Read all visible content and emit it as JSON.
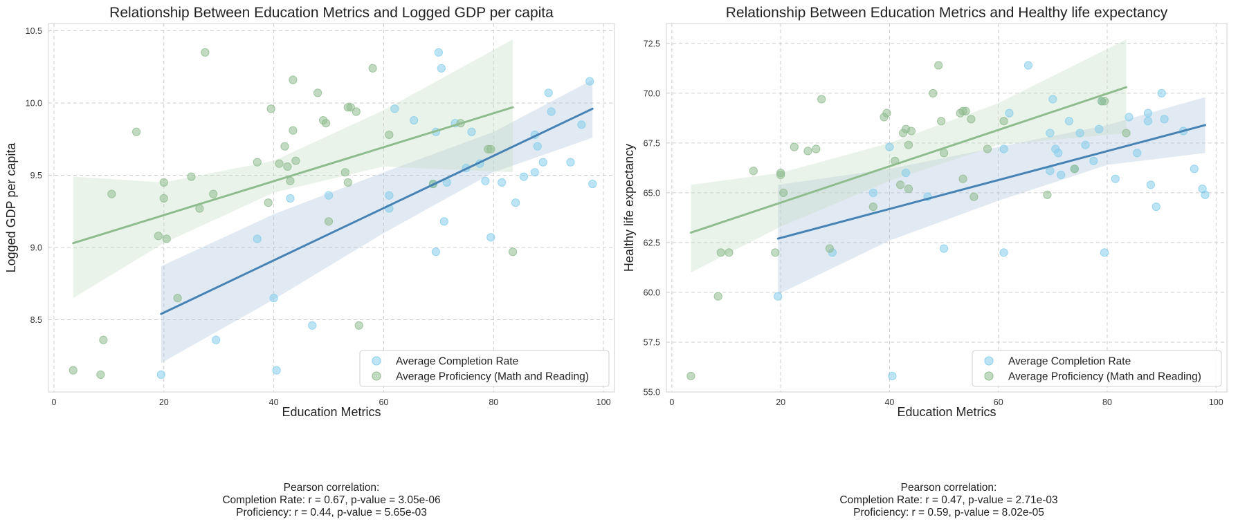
{
  "chart_data": [
    {
      "type": "scatter",
      "title": "Relationship Between Education Metrics and Logged GDP per capita",
      "xlabel": "Education Metrics",
      "ylabel": "Logged GDP per capita",
      "xlim": [
        -1,
        102
      ],
      "ylim": [
        8.0,
        10.55
      ],
      "xticks": [
        "0",
        "20",
        "40",
        "60",
        "80",
        "100"
      ],
      "yticks": [
        "8.5",
        "9.0",
        "9.5",
        "10.0",
        "10.5"
      ],
      "grid": true,
      "legend_position": "lower-right",
      "series": [
        {
          "name": "Average Completion Rate",
          "color": "#87ceeb",
          "points": [
            [
              19.5,
              8.12
            ],
            [
              29.5,
              8.36
            ],
            [
              37,
              9.06
            ],
            [
              40,
              8.65
            ],
            [
              40.5,
              8.15
            ],
            [
              43,
              9.34
            ],
            [
              47,
              8.46
            ],
            [
              50,
              9.36
            ],
            [
              61,
              9.36
            ],
            [
              61,
              9.27
            ],
            [
              62,
              9.96
            ],
            [
              65.5,
              9.88
            ],
            [
              69,
              9.44
            ],
            [
              69.5,
              8.97
            ],
            [
              69.5,
              9.8
            ],
            [
              70,
              10.35
            ],
            [
              70.5,
              10.24
            ],
            [
              71,
              9.18
            ],
            [
              71.5,
              9.45
            ],
            [
              73,
              9.86
            ],
            [
              75,
              9.55
            ],
            [
              76,
              9.8
            ],
            [
              77.5,
              9.58
            ],
            [
              78.5,
              9.46
            ],
            [
              79.5,
              9.07
            ],
            [
              81.5,
              9.45
            ],
            [
              84,
              9.31
            ],
            [
              85.5,
              9.49
            ],
            [
              87.5,
              9.52
            ],
            [
              87.5,
              9.78
            ],
            [
              88,
              9.7
            ],
            [
              89,
              9.59
            ],
            [
              90,
              10.07
            ],
            [
              90.5,
              9.94
            ],
            [
              94,
              9.59
            ],
            [
              96,
              9.85
            ],
            [
              97.5,
              10.15
            ],
            [
              98,
              9.44
            ]
          ],
          "fit": {
            "x": [
              19.5,
              98
            ],
            "y": [
              8.54,
              9.96
            ]
          },
          "ci_upper": [
            [
              19.5,
              8.87
            ],
            [
              40,
              9.23
            ],
            [
              60,
              9.52
            ],
            [
              80,
              9.8
            ],
            [
              98,
              10.16
            ]
          ],
          "ci_lower": [
            [
              19.5,
              8.2
            ],
            [
              40,
              8.64
            ],
            [
              60,
              9.1
            ],
            [
              80,
              9.52
            ],
            [
              98,
              9.76
            ]
          ]
        },
        {
          "name": "Average Proficiency (Math and Reading)",
          "color": "#8fbc8f",
          "points": [
            [
              3.5,
              8.15
            ],
            [
              8.5,
              8.12
            ],
            [
              9,
              8.36
            ],
            [
              10.5,
              9.37
            ],
            [
              15,
              9.8
            ],
            [
              19,
              9.08
            ],
            [
              20,
              9.45
            ],
            [
              20,
              9.34
            ],
            [
              20.5,
              9.06
            ],
            [
              22.5,
              8.65
            ],
            [
              25,
              9.49
            ],
            [
              26.5,
              9.27
            ],
            [
              27.5,
              10.35
            ],
            [
              29,
              9.37
            ],
            [
              37,
              9.59
            ],
            [
              39,
              9.31
            ],
            [
              39.5,
              9.96
            ],
            [
              41,
              9.58
            ],
            [
              42,
              9.7
            ],
            [
              42.5,
              9.56
            ],
            [
              43,
              9.46
            ],
            [
              43.5,
              10.16
            ],
            [
              43.5,
              9.81
            ],
            [
              44,
              9.6
            ],
            [
              48,
              10.07
            ],
            [
              49,
              9.88
            ],
            [
              49.5,
              9.86
            ],
            [
              50,
              9.18
            ],
            [
              53,
              9.52
            ],
            [
              53.5,
              9.45
            ],
            [
              53.5,
              9.97
            ],
            [
              54,
              9.97
            ],
            [
              55,
              9.94
            ],
            [
              55.5,
              8.46
            ],
            [
              58,
              10.24
            ],
            [
              61,
              9.78
            ],
            [
              69,
              9.44
            ],
            [
              74,
              9.86
            ],
            [
              79,
              9.68
            ],
            [
              79.5,
              9.68
            ],
            [
              83.5,
              8.97
            ]
          ],
          "fit": {
            "x": [
              3.5,
              83.5
            ],
            "y": [
              9.03,
              9.97
            ]
          },
          "ci_upper": [
            [
              3.5,
              9.49
            ],
            [
              20,
              9.45
            ],
            [
              40,
              9.6
            ],
            [
              60,
              9.95
            ],
            [
              83.5,
              10.44
            ]
          ],
          "ci_lower": [
            [
              3.5,
              8.65
            ],
            [
              20,
              9.03
            ],
            [
              40,
              9.38
            ],
            [
              60,
              9.56
            ],
            [
              83.5,
              9.52
            ]
          ]
        }
      ],
      "annotation_title": "Pearson correlation:",
      "annotations": [
        "Completion Rate: r = 0.67, p-value = 3.05e-06",
        "Proficiency: r = 0.44, p-value = 5.65e-03"
      ]
    },
    {
      "type": "scatter",
      "title": "Relationship Between Education Metrics and Healthy life expectancy",
      "xlabel": "Education Metrics",
      "ylabel": "Healthy life expectancy",
      "xlim": [
        -1,
        102
      ],
      "ylim": [
        55,
        73.5
      ],
      "xticks": [
        "0",
        "20",
        "40",
        "60",
        "80",
        "100"
      ],
      "yticks": [
        "55.0",
        "57.5",
        "60.0",
        "62.5",
        "65.0",
        "67.5",
        "70.0",
        "72.5"
      ],
      "grid": true,
      "legend_position": "lower-right",
      "series": [
        {
          "name": "Average Completion Rate",
          "color": "#87ceeb",
          "points": [
            [
              19.5,
              59.8
            ],
            [
              29.5,
              62
            ],
            [
              37,
              65
            ],
            [
              40,
              67.3
            ],
            [
              40.5,
              55.8
            ],
            [
              43,
              66
            ],
            [
              47,
              64.8
            ],
            [
              50,
              62.2
            ],
            [
              61,
              62
            ],
            [
              61,
              67.2
            ],
            [
              62,
              69
            ],
            [
              65.5,
              71.4
            ],
            [
              69.5,
              68
            ],
            [
              69.5,
              66.1
            ],
            [
              70,
              69.7
            ],
            [
              70.5,
              67.2
            ],
            [
              71,
              67
            ],
            [
              71.5,
              65.9
            ],
            [
              73,
              68.6
            ],
            [
              74,
              66.2
            ],
            [
              75,
              68
            ],
            [
              76,
              67.4
            ],
            [
              77.5,
              66.6
            ],
            [
              78.5,
              68.2
            ],
            [
              79,
              69.6
            ],
            [
              79.5,
              62
            ],
            [
              81.5,
              65.7
            ],
            [
              84,
              68.8
            ],
            [
              85.5,
              67
            ],
            [
              87.5,
              69
            ],
            [
              87.5,
              68.6
            ],
            [
              88,
              65.4
            ],
            [
              89,
              64.3
            ],
            [
              90,
              70
            ],
            [
              90.5,
              68.7
            ],
            [
              94,
              68.1
            ],
            [
              96,
              66.2
            ],
            [
              97.5,
              65.2
            ],
            [
              98,
              64.9
            ]
          ],
          "fit": {
            "x": [
              19.5,
              98
            ],
            "y": [
              62.7,
              68.4
            ]
          },
          "ci_upper": [
            [
              19.5,
              65.4
            ],
            [
              40,
              66.2
            ],
            [
              60,
              67.3
            ],
            [
              80,
              68.4
            ],
            [
              98,
              69.8
            ]
          ],
          "ci_lower": [
            [
              19.5,
              59.9
            ],
            [
              40,
              62.6
            ],
            [
              60,
              64.6
            ],
            [
              80,
              66.4
            ],
            [
              98,
              67
            ]
          ]
        },
        {
          "name": "Average Proficiency (Math and Reading)",
          "color": "#8fbc8f",
          "points": [
            [
              3.5,
              55.8
            ],
            [
              8.5,
              59.8
            ],
            [
              9,
              62
            ],
            [
              10.5,
              62
            ],
            [
              15,
              66.1
            ],
            [
              19,
              62
            ],
            [
              20,
              66
            ],
            [
              20,
              65.9
            ],
            [
              20.5,
              65
            ],
            [
              22.5,
              67.3
            ],
            [
              25,
              67.1
            ],
            [
              26.5,
              67.2
            ],
            [
              27.5,
              69.7
            ],
            [
              29,
              62.2
            ],
            [
              37,
              64.3
            ],
            [
              39,
              68.8
            ],
            [
              39.5,
              69
            ],
            [
              41,
              66.6
            ],
            [
              42,
              65.4
            ],
            [
              42.5,
              68
            ],
            [
              43,
              68.2
            ],
            [
              43.5,
              65.2
            ],
            [
              43.5,
              67.4
            ],
            [
              44,
              68.1
            ],
            [
              48,
              70
            ],
            [
              49,
              71.4
            ],
            [
              49.5,
              68.6
            ],
            [
              50,
              67
            ],
            [
              53,
              69
            ],
            [
              53.5,
              65.7
            ],
            [
              53.5,
              69.1
            ],
            [
              54,
              69.1
            ],
            [
              55,
              68.7
            ],
            [
              55.5,
              64.8
            ],
            [
              58,
              67.2
            ],
            [
              61,
              68.6
            ],
            [
              69,
              64.9
            ],
            [
              74,
              66.2
            ],
            [
              79,
              69.6
            ],
            [
              79.5,
              69.6
            ],
            [
              83.5,
              68
            ]
          ],
          "fit": {
            "x": [
              3.5,
              83.5
            ],
            "y": [
              63,
              70.3
            ]
          },
          "ci_upper": [
            [
              3.5,
              65.4
            ],
            [
              20,
              66
            ],
            [
              40,
              67.5
            ],
            [
              60,
              69.5
            ],
            [
              83.5,
              72.7
            ]
          ],
          "ci_lower": [
            [
              3.5,
              61
            ],
            [
              20,
              63.3
            ],
            [
              40,
              65.6
            ],
            [
              60,
              67.4
            ],
            [
              83.5,
              68
            ]
          ]
        }
      ],
      "annotation_title": "Pearson correlation:",
      "annotations": [
        "Completion Rate: r = 0.47, p-value = 2.71e-03",
        "Proficiency: r = 0.59, p-value = 8.02e-05"
      ]
    }
  ]
}
